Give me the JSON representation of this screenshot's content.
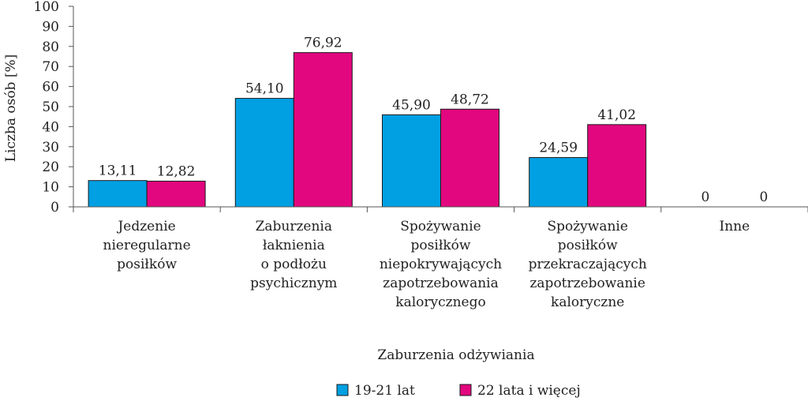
{
  "chart_data": {
    "type": "bar",
    "categories": [
      [
        "Jedzenie",
        "nieregularne",
        "posiłków"
      ],
      [
        "Zaburzenia",
        "łaknienia",
        "o podłożu",
        "psychicznym"
      ],
      [
        "Spożywanie",
        "posiłków",
        "niepokrywających",
        "zapotrzebowania",
        "kalorycznego"
      ],
      [
        "Spożywanie",
        "posiłków",
        "przekraczających",
        "zapotrzebowanie",
        "kaloryczne"
      ],
      [
        "Inne"
      ]
    ],
    "series": [
      {
        "name": "19-21 lat",
        "color": "#00a0e3",
        "values": [
          13.11,
          54.1,
          45.9,
          24.59,
          0
        ],
        "labels": [
          "13,11",
          "54,10",
          "45,90",
          "24,59",
          "0"
        ]
      },
      {
        "name": "22 lata i więcej",
        "color": "#e2077e",
        "values": [
          12.82,
          76.92,
          48.72,
          41.02,
          0
        ],
        "labels": [
          "12,82",
          "76,92",
          "48,72",
          "41,02",
          "0"
        ]
      }
    ],
    "xlabel": "Zaburzenia odżywiania",
    "ylabel": "Liczba osób [%]",
    "ylim": [
      0,
      100
    ],
    "yticks": [
      0,
      10,
      20,
      30,
      40,
      50,
      60,
      70,
      80,
      90,
      100
    ],
    "grid": false,
    "legend": "bottom"
  }
}
